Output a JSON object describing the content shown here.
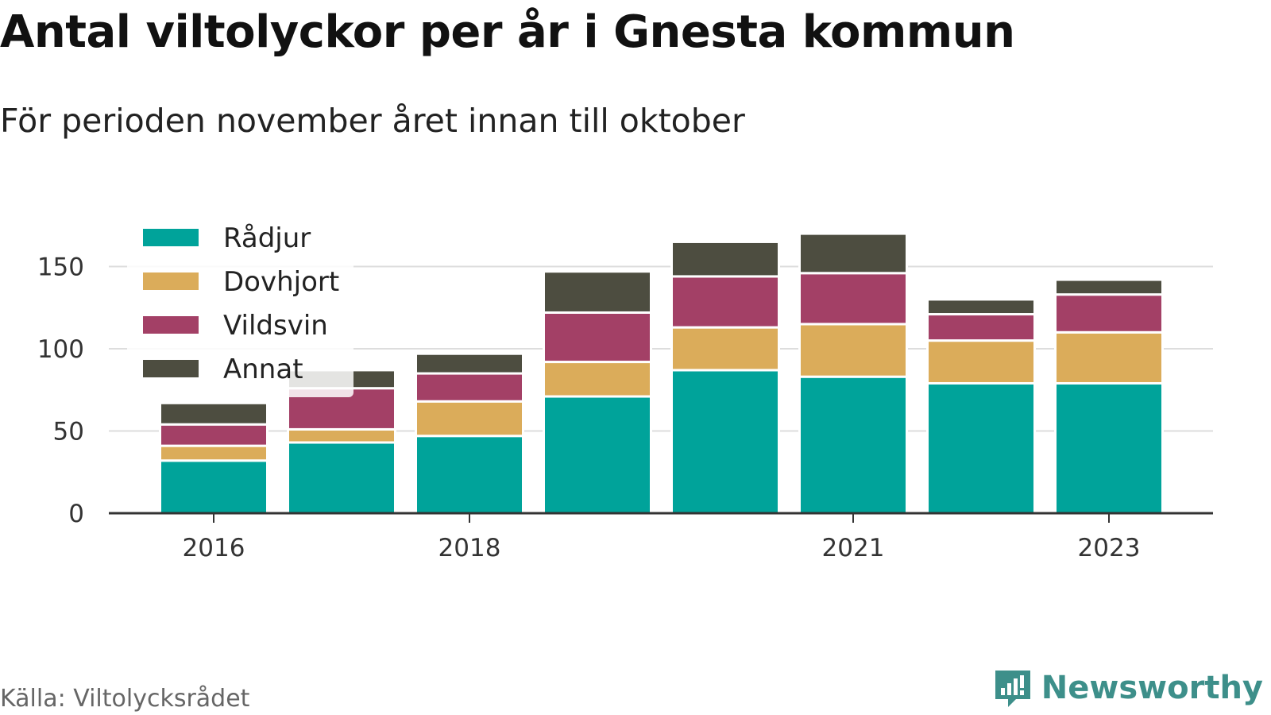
{
  "title": "Antal viltolyckor per år i Gnesta kommun",
  "subtitle": "För perioden november året innan till oktober",
  "source": "Källa: Viltolycksrådet",
  "brand": {
    "name": "Newsworthy",
    "icon": "newsworthy-logo-icon",
    "color": "#3d8f8a"
  },
  "chart_data": {
    "type": "bar",
    "stacked": true,
    "categories": [
      "2016",
      "2017",
      "2018",
      "2019",
      "2020",
      "2021",
      "2022",
      "2023"
    ],
    "x_tick_labels": [
      "2016",
      "",
      "2018",
      "",
      "",
      "2021",
      "",
      "2023"
    ],
    "series": [
      {
        "name": "Rådjur",
        "color": "#00a39a",
        "values": [
          32,
          43,
          47,
          71,
          87,
          83,
          79,
          79
        ]
      },
      {
        "name": "Dovhjort",
        "color": "#dbac5a",
        "values": [
          9,
          8,
          21,
          21,
          26,
          32,
          26,
          31
        ]
      },
      {
        "name": "Vildsvin",
        "color": "#a34066",
        "values": [
          13,
          25,
          17,
          30,
          31,
          31,
          16,
          23
        ]
      },
      {
        "name": "Annat",
        "color": "#4d4d40",
        "values": [
          13,
          11,
          12,
          25,
          21,
          24,
          9,
          9
        ]
      }
    ],
    "y_ticks": [
      0,
      50,
      100,
      150
    ],
    "ylim": [
      0,
      175
    ],
    "grid": true,
    "legend_position": "top-left",
    "xlabel": "",
    "ylabel": ""
  }
}
